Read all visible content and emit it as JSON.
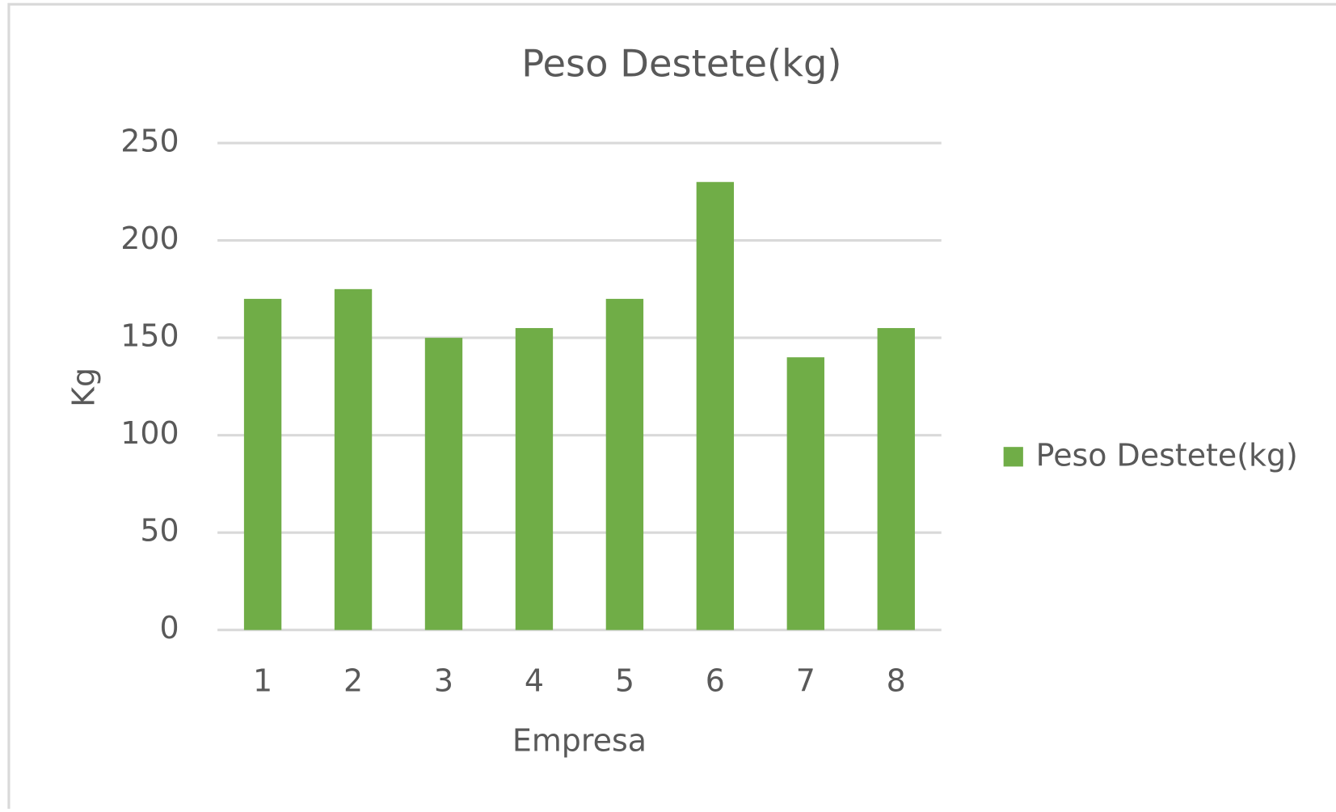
{
  "chart_data": {
    "type": "bar",
    "title": "Peso Destete(kg)",
    "x_label": "Empresa",
    "y_label": "Kg",
    "categories": [
      "1",
      "2",
      "3",
      "4",
      "5",
      "6",
      "7",
      "8"
    ],
    "series": [
      {
        "name": "Peso Destete(kg)",
        "color": "#70ad47",
        "values": [
          170,
          175,
          150,
          155,
          170,
          230,
          140,
          155
        ]
      }
    ],
    "ylim": [
      0,
      250
    ],
    "yticks": [
      0,
      50,
      100,
      150,
      200,
      250
    ],
    "grid": true,
    "legend": "right"
  }
}
